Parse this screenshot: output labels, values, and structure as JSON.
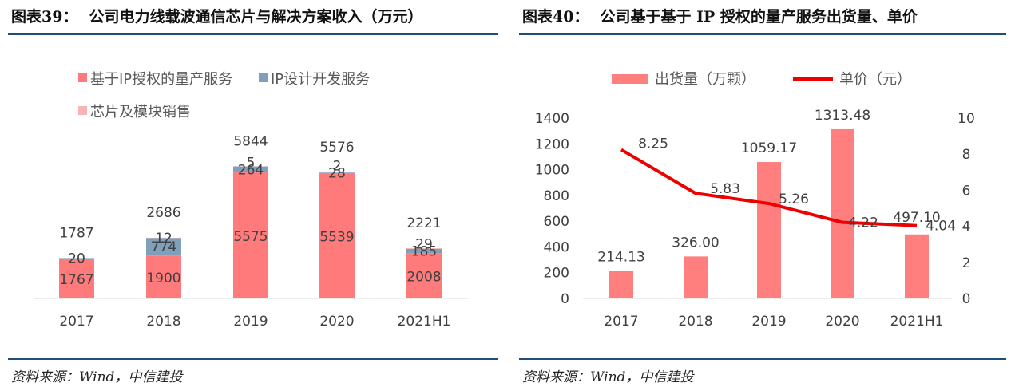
{
  "left": {
    "fig_number": "图表39：",
    "title": "公司电力线载波通信芯片与解决方案收入（万元）",
    "source": "资料来源：Wind，中信建投",
    "colors": {
      "ip_mass": "#ff7b7b",
      "ip_design": "#7f9fba",
      "chip": "#f7b3b5"
    },
    "chart_data": {
      "type": "bar",
      "stacked": true,
      "categories": [
        "2017",
        "2018",
        "2019",
        "2020",
        "2021H1"
      ],
      "series": [
        {
          "name": "基于IP授权的量产服务",
          "values": [
            1767,
            1900,
            5575,
            5539,
            2008
          ]
        },
        {
          "name": "IP设计开发服务",
          "values": [
            20,
            774,
            264,
            28,
            185
          ]
        },
        {
          "name": "芯片及模块销售",
          "values": [
            0,
            12,
            5,
            2,
            29
          ]
        }
      ],
      "totals": [
        1787,
        2686,
        5844,
        5576,
        2221
      ],
      "ylim": [
        0,
        6000
      ],
      "legend_position": "top-left"
    }
  },
  "right": {
    "fig_number": "图表40：",
    "title": "公司基于基于 IP 授权的量产服务出货量、单价",
    "source": "资料来源：Wind，中信建投",
    "colors": {
      "bar": "#ff7f7f",
      "line": "#ee0000"
    },
    "chart_data": {
      "type": "bar",
      "categories": [
        "2017",
        "2018",
        "2019",
        "2020",
        "2021H1"
      ],
      "series": [
        {
          "name": "出货量（万颗）",
          "type": "bar",
          "axis": "left",
          "values": [
            214.13,
            326.0,
            1059.17,
            1313.48,
            497.1
          ]
        },
        {
          "name": "单价（元）",
          "type": "line",
          "axis": "right",
          "values": [
            8.25,
            5.83,
            5.26,
            4.22,
            4.04
          ]
        }
      ],
      "y_left": {
        "ylim": [
          0,
          1400
        ],
        "ticks": [
          "0",
          "200",
          "400",
          "600",
          "800",
          "1000",
          "1200",
          "1400"
        ]
      },
      "y_right": {
        "ylim": [
          0,
          10
        ],
        "ticks": [
          "0",
          "2",
          "4",
          "6",
          "8",
          "10"
        ]
      },
      "legend_position": "top-center"
    }
  }
}
